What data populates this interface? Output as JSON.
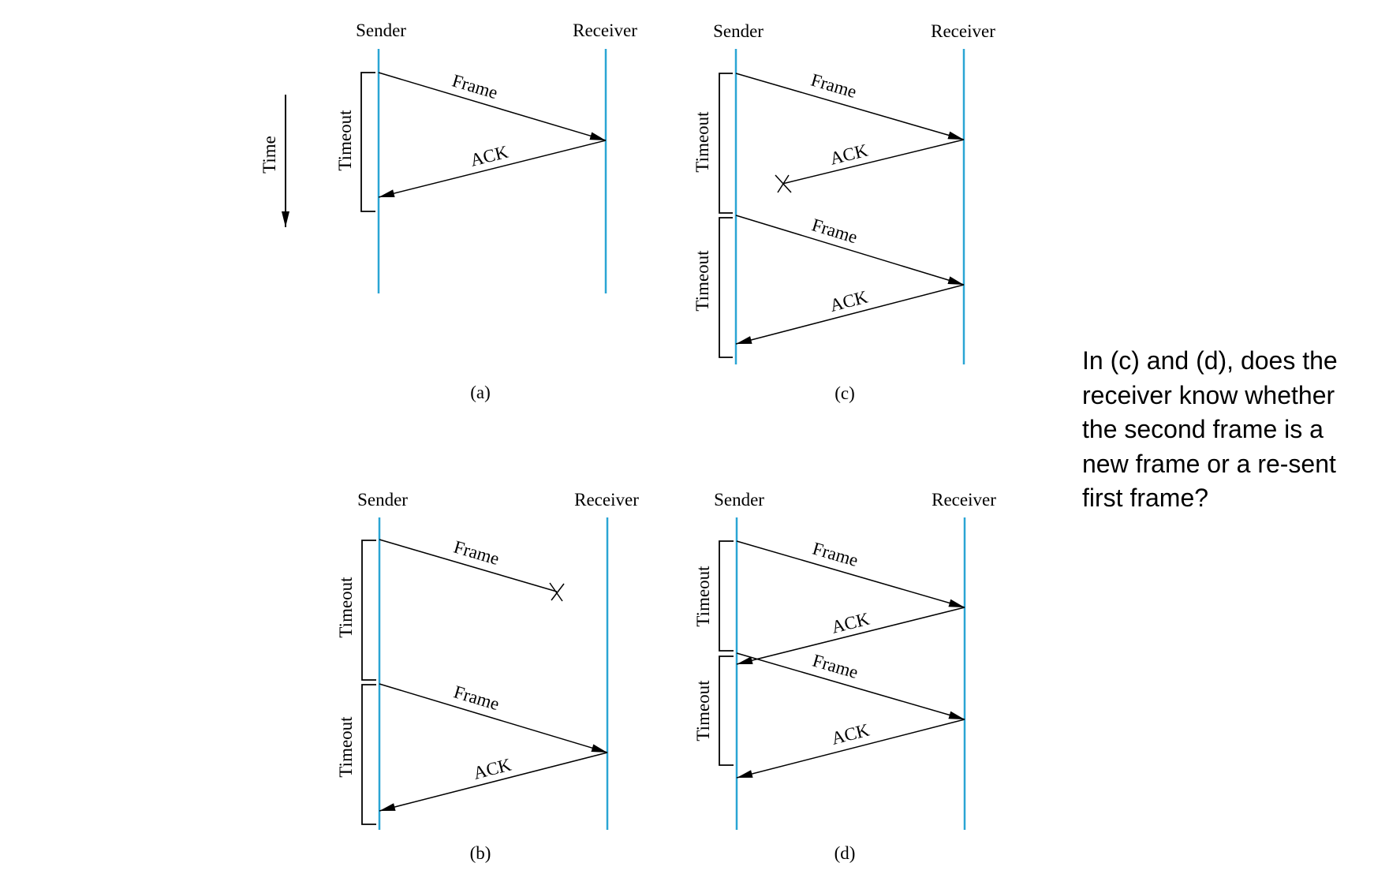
{
  "time_label": "Time",
  "question": "In (c) and (d), does the receiver know whether the second frame is a new frame or a re-sent first frame?",
  "colors": {
    "timeline": "#2aa5d4",
    "ink": "#000000"
  },
  "panels": {
    "a": {
      "caption": "(a)",
      "sender": "Sender",
      "receiver": "Receiver",
      "messages": [
        {
          "label": "Frame",
          "direction": "to-receiver",
          "lost": false
        },
        {
          "label": "ACK",
          "direction": "to-sender",
          "lost": false
        }
      ],
      "timeouts": [
        "Timeout"
      ]
    },
    "b": {
      "caption": "(b)",
      "sender": "Sender",
      "receiver": "Receiver",
      "messages": [
        {
          "label": "Frame",
          "direction": "to-receiver",
          "lost": true
        },
        {
          "label": "Frame",
          "direction": "to-receiver",
          "lost": false
        },
        {
          "label": "ACK",
          "direction": "to-sender",
          "lost": false
        }
      ],
      "timeouts": [
        "Timeout",
        "Timeout"
      ]
    },
    "c": {
      "caption": "(c)",
      "sender": "Sender",
      "receiver": "Receiver",
      "messages": [
        {
          "label": "Frame",
          "direction": "to-receiver",
          "lost": false
        },
        {
          "label": "ACK",
          "direction": "to-sender",
          "lost": true
        },
        {
          "label": "Frame",
          "direction": "to-receiver",
          "lost": false
        },
        {
          "label": "ACK",
          "direction": "to-sender",
          "lost": false
        }
      ],
      "timeouts": [
        "Timeout",
        "Timeout"
      ]
    },
    "d": {
      "caption": "(d)",
      "sender": "Sender",
      "receiver": "Receiver",
      "messages": [
        {
          "label": "Frame",
          "direction": "to-receiver",
          "lost": false
        },
        {
          "label": "ACK",
          "direction": "to-sender",
          "lost": false
        },
        {
          "label": "Frame",
          "direction": "to-receiver",
          "lost": false
        },
        {
          "label": "ACK",
          "direction": "to-sender",
          "lost": false
        }
      ],
      "timeouts": [
        "Timeout",
        "Timeout"
      ]
    }
  }
}
